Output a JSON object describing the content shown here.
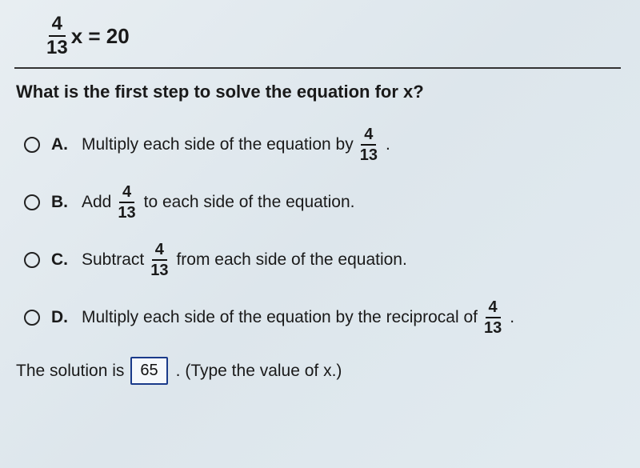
{
  "equation": {
    "numerator": "4",
    "denominator": "13",
    "rest": "x = 20"
  },
  "question": "What is the first step to solve the equation for x?",
  "options": [
    {
      "letter": "A.",
      "pre": "Multiply each side of the equation by",
      "frac_num": "4",
      "frac_den": "13",
      "post": "."
    },
    {
      "letter": "B.",
      "pre": "Add",
      "frac_num": "4",
      "frac_den": "13",
      "post": "to each side of the equation."
    },
    {
      "letter": "C.",
      "pre": "Subtract",
      "frac_num": "4",
      "frac_den": "13",
      "post": "from each side of the equation."
    },
    {
      "letter": "D.",
      "pre": "Multiply each side of the equation by the reciprocal of",
      "frac_num": "4",
      "frac_den": "13",
      "post": "."
    }
  ],
  "solution": {
    "prefix": "The solution is",
    "value": "65",
    "suffix": ". (Type the value of x.)"
  },
  "colors": {
    "text": "#1a1a1a",
    "divider": "#333333",
    "radio_border": "#222222",
    "box_border": "#1a3a8a",
    "box_bg": "#f5f8fc",
    "page_bg_a": "#e8eef2",
    "page_bg_b": "#dde6ec"
  },
  "typography": {
    "base_font": "Arial",
    "equation_fontsize_pt": 20,
    "question_fontsize_pt": 17,
    "option_fontsize_pt": 16
  }
}
